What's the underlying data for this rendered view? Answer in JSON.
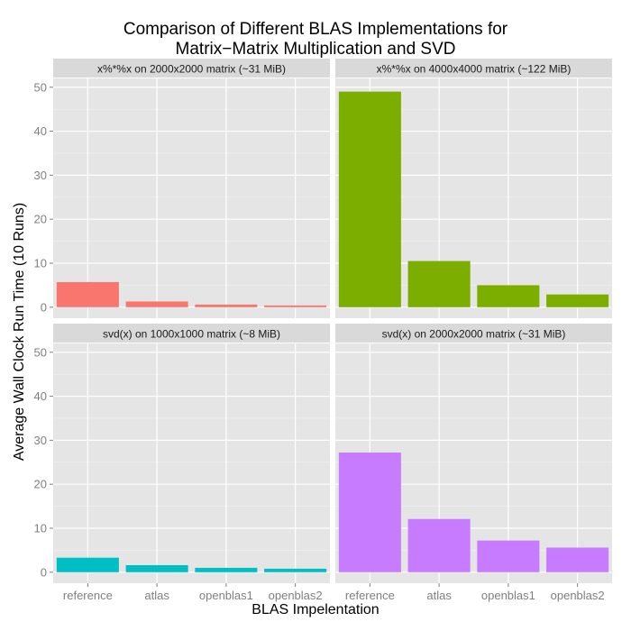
{
  "chart_data": {
    "type": "bar",
    "title_line1": "Comparison of Different BLAS Implementations for",
    "title_line2": "Matrix−Matrix Multiplication and SVD",
    "xlabel": "BLAS Impelentation",
    "ylabel": "Average Wall Clock Run Time (10 Runs)",
    "categories": [
      "reference",
      "atlas",
      "openblas1",
      "openblas2"
    ],
    "yticks": [
      0,
      10,
      20,
      30,
      40,
      50
    ],
    "ylim": [
      -2.5,
      52
    ],
    "grid": true,
    "facets": [
      {
        "title": "x%*%x on 2000x2000 matrix (~31 MiB)",
        "color": "#F8766D",
        "values": [
          5.7,
          1.3,
          0.6,
          0.4
        ]
      },
      {
        "title": "x%*%x on 4000x4000 matrix (~122 MiB)",
        "color": "#7CAE00",
        "values": [
          49.0,
          10.5,
          5.0,
          2.9
        ]
      },
      {
        "title": "svd(x) on 1000x1000 matrix (~8 MiB)",
        "color": "#00BFC4",
        "values": [
          3.3,
          1.6,
          1.0,
          0.8
        ]
      },
      {
        "title": "svd(x) on 2000x2000 matrix (~31 MiB)",
        "color": "#C77CFF",
        "values": [
          27.2,
          12.1,
          7.2,
          5.6
        ]
      }
    ]
  }
}
